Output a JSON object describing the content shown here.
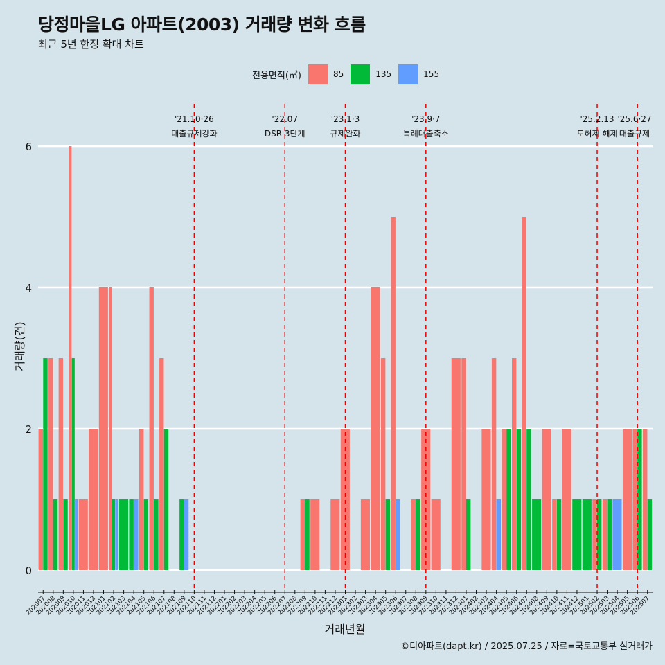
{
  "title": "당정마을LG 아파트(2003) 거래량 변화 흐름",
  "subtitle": "최근 5년 한정 확대 차트",
  "caption": "©디아파트(dapt.kr) / 2025.07.25 / 자료=국토교통부 실거래가",
  "legend": {
    "title": "전용면적(㎡)",
    "items": [
      {
        "label": "85",
        "color": "#f8766d"
      },
      {
        "label": "135",
        "color": "#00ba38"
      },
      {
        "label": "155",
        "color": "#619cff"
      }
    ]
  },
  "chart_data": {
    "type": "bar",
    "xlabel": "거래년월",
    "ylabel": "거래량(건)",
    "ylim": [
      0,
      6
    ],
    "yticks": [
      0,
      2,
      4,
      6
    ],
    "grid": "horizontal",
    "legend_position": "top",
    "categories": [
      "202007",
      "202008",
      "202009",
      "202010",
      "202011",
      "202012",
      "202101",
      "202102",
      "202103",
      "202104",
      "202105",
      "202106",
      "202107",
      "202108",
      "202109",
      "202110",
      "202111",
      "202112",
      "202201",
      "202202",
      "202203",
      "202204",
      "202205",
      "202206",
      "202207",
      "202208",
      "202209",
      "202210",
      "202211",
      "202212",
      "202301",
      "202302",
      "202303",
      "202304",
      "202305",
      "202306",
      "202307",
      "202308",
      "202309",
      "202310",
      "202311",
      "202312",
      "202401",
      "202402",
      "202403",
      "202404",
      "202405",
      "202406",
      "202407",
      "202408",
      "202409",
      "202410",
      "202411",
      "202412",
      "202501",
      "202502",
      "202503",
      "202504",
      "202505",
      "202506",
      "202507"
    ],
    "series": [
      {
        "name": "85",
        "color": "#f8766d",
        "values": [
          2,
          3,
          3,
          6,
          1,
          2,
          4,
          4,
          0,
          0,
          2,
          4,
          3,
          0,
          0,
          0,
          0,
          0,
          0,
          0,
          0,
          0,
          0,
          0,
          0,
          0,
          1,
          1,
          0,
          1,
          2,
          0,
          1,
          4,
          3,
          5,
          0,
          1,
          2,
          1,
          0,
          3,
          3,
          0,
          2,
          3,
          2,
          3,
          5,
          0,
          2,
          1,
          2,
          0,
          0,
          1,
          1,
          0,
          2,
          2,
          2
        ]
      },
      {
        "name": "135",
        "color": "#00ba38",
        "values": [
          3,
          1,
          1,
          3,
          0,
          0,
          0,
          1,
          1,
          1,
          1,
          1,
          2,
          0,
          1,
          0,
          0,
          0,
          0,
          0,
          0,
          0,
          0,
          0,
          0,
          0,
          1,
          0,
          0,
          0,
          0,
          0,
          0,
          0,
          1,
          0,
          0,
          1,
          0,
          0,
          0,
          0,
          1,
          0,
          0,
          0,
          2,
          2,
          2,
          1,
          0,
          1,
          0,
          1,
          1,
          1,
          1,
          0,
          0,
          2,
          1
        ]
      },
      {
        "name": "155",
        "color": "#619cff",
        "values": [
          0,
          0,
          0,
          1,
          0,
          0,
          0,
          1,
          0,
          1,
          0,
          0,
          0,
          0,
          1,
          0,
          0,
          0,
          0,
          0,
          0,
          0,
          0,
          0,
          0,
          0,
          0,
          0,
          0,
          0,
          0,
          0,
          0,
          0,
          0,
          1,
          0,
          0,
          0,
          0,
          0,
          0,
          0,
          0,
          0,
          1,
          0,
          0,
          0,
          0,
          0,
          0,
          0,
          0,
          0,
          0,
          0,
          1,
          0,
          0,
          0
        ]
      }
    ],
    "annotations": [
      {
        "category": "202110",
        "date": "'21.10·26",
        "label": "대출규제강화"
      },
      {
        "category": "202207",
        "date": "'22.07",
        "label": "DSR 3단계"
      },
      {
        "category": "202301",
        "date": "'23.1·3",
        "label": "규제완화"
      },
      {
        "category": "202309",
        "date": "'23.9·7",
        "label": "특례대출축소"
      },
      {
        "category": "202502",
        "date": "'25.2.13",
        "label": "토허제 해제"
      },
      {
        "category": "202506",
        "date": "'25.6·27",
        "label": "대출규제"
      }
    ],
    "annotation_line_color": "#ee0000"
  }
}
